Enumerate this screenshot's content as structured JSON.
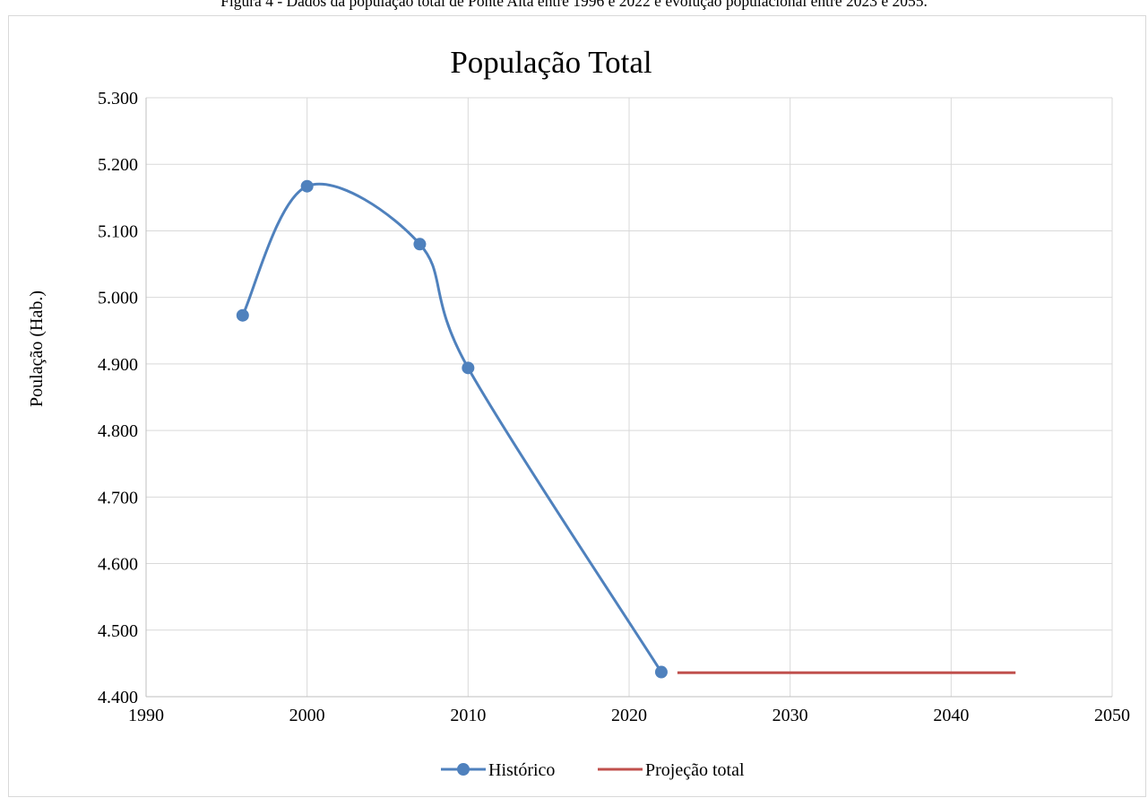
{
  "caption": "Figura 4 - Dados da população total de Ponte Alta entre 1996 e 2022 e evolução populacional entre 2023 e 2055.",
  "chart_data": {
    "type": "scatter",
    "title": "População Total",
    "xlabel": "",
    "ylabel": "Poulação (Hab.)",
    "xlim": [
      1990,
      2050
    ],
    "ylim": [
      4400,
      5300
    ],
    "x_ticks": [
      1990,
      2000,
      2010,
      2020,
      2030,
      2040,
      2050
    ],
    "x_tick_labels": [
      "1990",
      "2000",
      "2010",
      "2020",
      "2030",
      "2040",
      "2050"
    ],
    "y_ticks": [
      4400,
      4500,
      4600,
      4700,
      4800,
      4900,
      5000,
      5100,
      5200,
      5300
    ],
    "y_tick_labels": [
      "4.400",
      "4.500",
      "4.600",
      "4.700",
      "4.800",
      "4.900",
      "5.000",
      "5.100",
      "5.200",
      "5.300"
    ],
    "grid": true,
    "legend_position": "bottom",
    "series": [
      {
        "name": "Histórico",
        "color": "#4f81bd",
        "style": "smooth-line-markers",
        "x": [
          1996,
          2000,
          2007,
          2010,
          2022
        ],
        "y": [
          4973,
          5167,
          5080,
          4894,
          4437
        ]
      },
      {
        "name": "Projeção total",
        "color": "#c0504d",
        "style": "line",
        "x": [
          2023,
          2044
        ],
        "y": [
          4436,
          4436
        ]
      }
    ]
  }
}
